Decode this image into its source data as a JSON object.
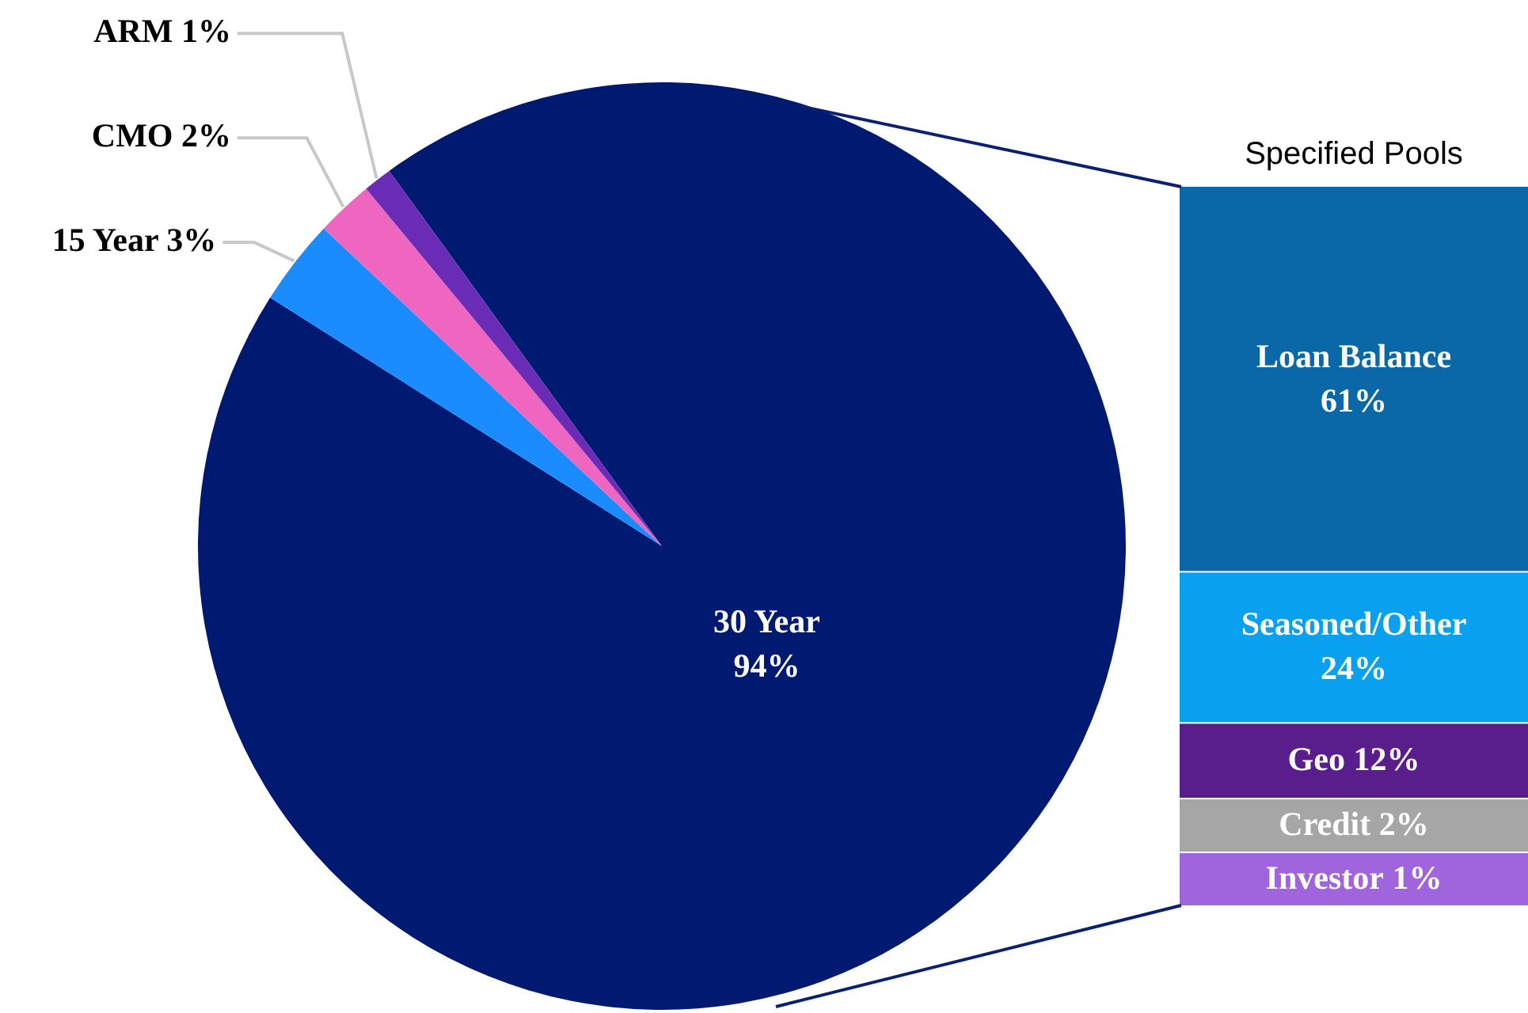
{
  "chart_data": [
    {
      "type": "pie",
      "categories": [
        "30 Year",
        "15 Year",
        "CMO",
        "ARM"
      ],
      "values": [
        94,
        3,
        2,
        1
      ],
      "value_labels": [
        "94%",
        "3%",
        "2%",
        "1%"
      ],
      "colors": [
        "#001a72",
        "#1a8cff",
        "#ee66c0",
        "#6a2cb4"
      ]
    },
    {
      "type": "other",
      "title": "Specified Pools",
      "categories": [
        "Loan Balance",
        "Seasoned/Other",
        "Geo",
        "Credit",
        "Investor"
      ],
      "values": [
        61,
        24,
        12,
        2,
        1
      ],
      "value_labels": [
        "61%",
        "24%",
        "12%",
        "2%",
        "1%"
      ],
      "colors": [
        "#0a68a8",
        "#0aa0f0",
        "#5a1e8c",
        "#a6a6a6",
        "#a064dc"
      ]
    }
  ]
}
